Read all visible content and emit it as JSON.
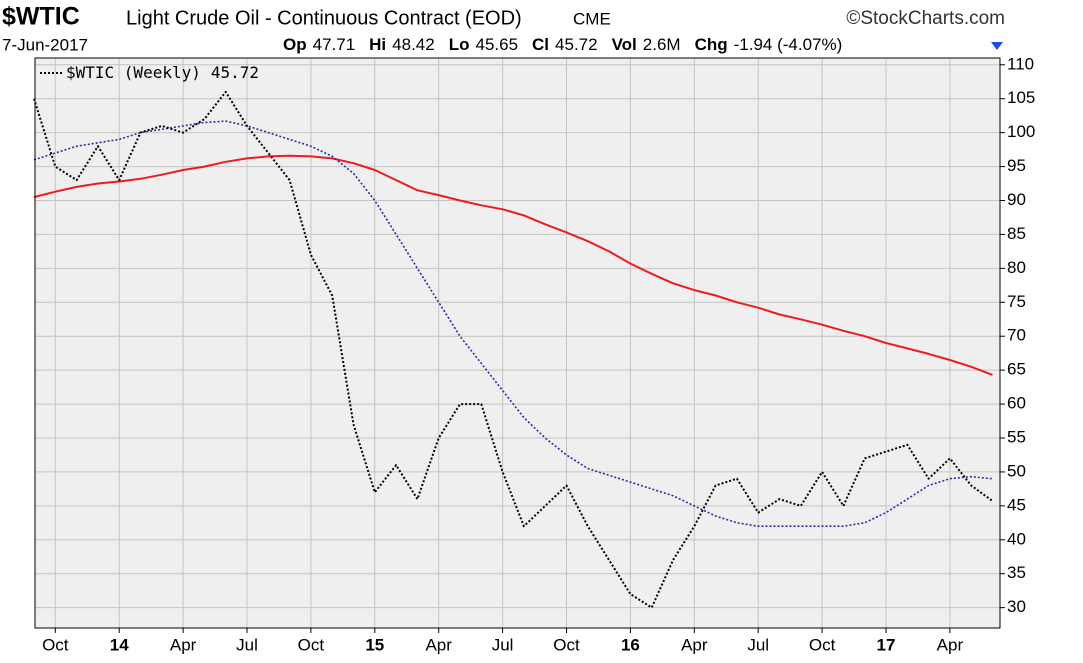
{
  "chart_data": {
    "type": "line",
    "symbol": "$WTIC",
    "title": "Light Crude Oil - Continuous Contract (EOD)",
    "exchange": "CME",
    "source": "©StockCharts.com",
    "date": "7-Jun-2017",
    "stats": [
      {
        "label": "Op",
        "value": "47.71"
      },
      {
        "label": "Hi",
        "value": "48.42"
      },
      {
        "label": "Lo",
        "value": "45.65"
      },
      {
        "label": "Cl",
        "value": "45.72"
      },
      {
        "label": "Vol",
        "value": "2.6M"
      },
      {
        "label": "Chg",
        "value": "-1.94 (-4.07%)"
      }
    ],
    "categories": [
      null,
      "Oct",
      null,
      null,
      "14",
      null,
      null,
      "Apr",
      null,
      null,
      "Jul",
      null,
      null,
      "Oct",
      null,
      null,
      "15",
      null,
      null,
      "Apr",
      null,
      null,
      "Jul",
      null,
      null,
      "Oct",
      null,
      null,
      "16",
      null,
      null,
      "Apr",
      null,
      null,
      "Jul",
      null,
      null,
      "Oct",
      null,
      null,
      "17",
      null,
      null,
      "Apr",
      null,
      null
    ],
    "series": [
      {
        "name": "$WTIC (Weekly)",
        "color": "#000000",
        "style": "dotted",
        "width": 2,
        "values": [
          105,
          95,
          93,
          98,
          93,
          100,
          101,
          100,
          102,
          106,
          101,
          97,
          93,
          82,
          76,
          57,
          47,
          51,
          46,
          55,
          60,
          60,
          50,
          42,
          45,
          48,
          42,
          37,
          32,
          30,
          37,
          42,
          48,
          49,
          44,
          46,
          45,
          50,
          45,
          52,
          53,
          54,
          49,
          52,
          48,
          45.72
        ]
      },
      {
        "color": "#2a2aa8",
        "style": "dotted",
        "width": 1.6,
        "values": [
          96,
          97,
          98,
          98.5,
          99,
          100,
          100.5,
          101,
          101.5,
          101.7,
          101,
          100,
          99,
          98,
          96.5,
          94,
          90,
          85,
          80,
          75,
          70,
          66,
          62,
          58,
          55,
          52.5,
          50.5,
          49.5,
          48.5,
          47.5,
          46.5,
          45,
          43.5,
          42.5,
          42,
          42,
          42,
          42,
          42,
          42.5,
          44,
          46,
          48,
          49,
          49.3,
          49
        ]
      },
      {
        "color": "#ee1c1c",
        "style": "solid",
        "width": 2,
        "values": [
          90.5,
          91.3,
          92,
          92.5,
          92.8,
          93.2,
          93.8,
          94.5,
          95,
          95.7,
          96.2,
          96.5,
          96.6,
          96.5,
          96.2,
          95.5,
          94.5,
          93,
          91.5,
          90.8,
          90,
          89.3,
          88.7,
          87.8,
          86.5,
          85.3,
          84,
          82.5,
          80.7,
          79.2,
          77.8,
          76.8,
          76,
          75,
          74.2,
          73.2,
          72.5,
          71.7,
          70.8,
          70,
          69,
          68.2,
          67.4,
          66.5,
          65.5,
          64.3
        ]
      }
    ],
    "ylim": [
      27,
      111
    ],
    "yticks": [
      30,
      35,
      40,
      45,
      50,
      55,
      60,
      65,
      70,
      75,
      80,
      85,
      90,
      95,
      100,
      105,
      110
    ],
    "grid": true,
    "background": "#efefef",
    "grid_color": "#c4c4c4"
  }
}
